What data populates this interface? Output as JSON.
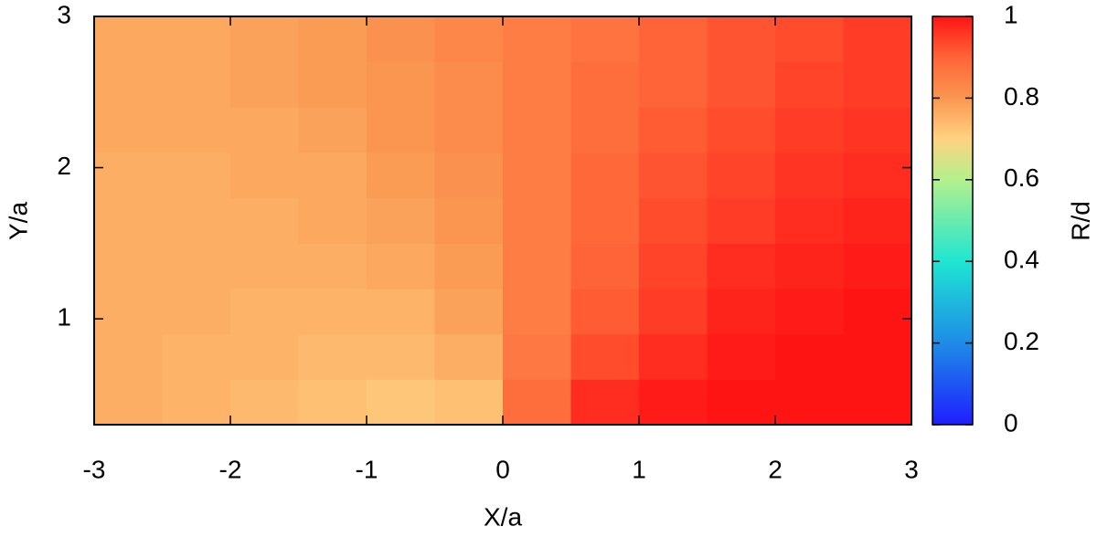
{
  "chart_data": {
    "type": "heatmap",
    "x_label": "X/a",
    "y_label": "Y/a",
    "colorbar_label": "R/d",
    "x": [
      -2.75,
      -2.25,
      -1.75,
      -1.25,
      -0.75,
      -0.25,
      0.25,
      0.75,
      1.25,
      1.75,
      2.25,
      2.75
    ],
    "y": [
      0.45,
      0.75,
      1.05,
      1.35,
      1.65,
      1.95,
      2.25,
      2.55,
      2.85
    ],
    "z": [
      [
        0.76,
        0.75,
        0.74,
        0.73,
        0.72,
        0.73,
        0.88,
        0.97,
        0.99,
        1.0,
        1.0,
        1.0
      ],
      [
        0.76,
        0.75,
        0.75,
        0.74,
        0.74,
        0.76,
        0.86,
        0.93,
        0.97,
        0.99,
        1.0,
        1.0
      ],
      [
        0.76,
        0.76,
        0.75,
        0.75,
        0.75,
        0.78,
        0.85,
        0.91,
        0.95,
        0.98,
        0.99,
        1.0
      ],
      [
        0.76,
        0.76,
        0.76,
        0.76,
        0.77,
        0.79,
        0.85,
        0.9,
        0.94,
        0.97,
        0.98,
        0.99
      ],
      [
        0.76,
        0.76,
        0.76,
        0.77,
        0.78,
        0.8,
        0.85,
        0.89,
        0.93,
        0.95,
        0.97,
        0.98
      ],
      [
        0.76,
        0.76,
        0.77,
        0.77,
        0.79,
        0.81,
        0.85,
        0.89,
        0.92,
        0.94,
        0.96,
        0.97
      ],
      [
        0.77,
        0.77,
        0.77,
        0.78,
        0.8,
        0.82,
        0.85,
        0.88,
        0.91,
        0.93,
        0.95,
        0.96
      ],
      [
        0.77,
        0.77,
        0.78,
        0.79,
        0.8,
        0.82,
        0.85,
        0.88,
        0.9,
        0.92,
        0.94,
        0.95
      ],
      [
        0.77,
        0.77,
        0.78,
        0.79,
        0.81,
        0.83,
        0.85,
        0.87,
        0.9,
        0.92,
        0.93,
        0.95
      ]
    ],
    "xlim": [
      -3,
      3
    ],
    "xticks": [
      -3,
      -2,
      -1,
      0,
      1,
      2,
      3
    ],
    "ylim": [
      0.3,
      3
    ],
    "yticks": [
      1,
      2,
      3
    ],
    "zlim": [
      0,
      1
    ],
    "zticks": [
      0,
      0.2,
      0.4,
      0.6,
      0.8,
      1
    ],
    "colormap": [
      [
        0,
        "#1e1eff"
      ],
      [
        0.2,
        "#1e8ce6"
      ],
      [
        0.4,
        "#1ee6d2"
      ],
      [
        0.6,
        "#b4f08c"
      ],
      [
        0.7,
        "#ffd282"
      ],
      [
        0.8,
        "#fa9650"
      ],
      [
        0.9,
        "#ff6438"
      ],
      [
        1,
        "#ff1414"
      ]
    ]
  }
}
